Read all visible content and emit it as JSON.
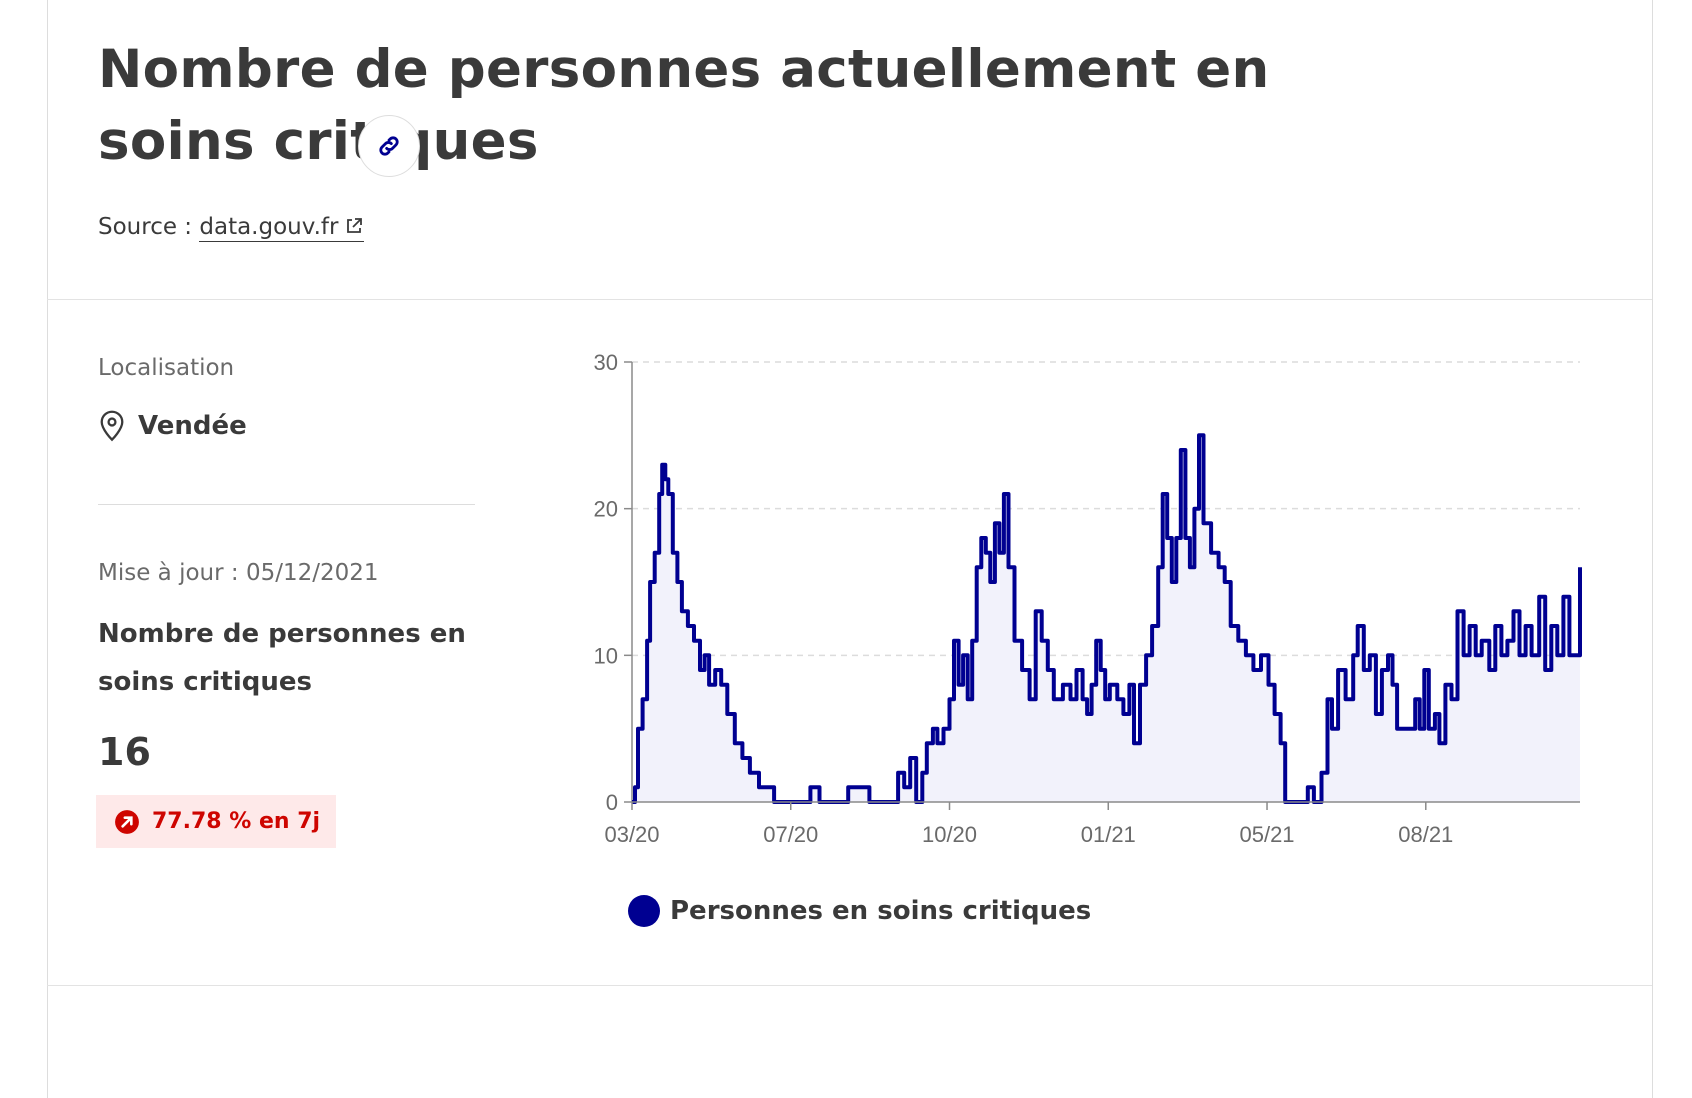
{
  "title": "Nombre de personnes actuellement en soins critiques",
  "source": {
    "prefix": "Source :",
    "link_label": "data.gouv.fr"
  },
  "localisation": {
    "label": "Localisation",
    "value": "Vendée"
  },
  "update": "Mise à jour : 05/12/2021",
  "kpi": {
    "label": "Nombre de personnes en soins critiques",
    "value": "16",
    "trend": "77.78 % en 7j"
  },
  "colors": {
    "series": "#000091",
    "area": "#f2f2fb",
    "trend_text": "#ce0500",
    "trend_bg": "#fee9e9"
  },
  "icons": {
    "link": "link-icon",
    "external": "external-link-icon",
    "location": "map-pin-icon",
    "trend": "arrow-up-right-circle-icon"
  },
  "legend_label": "Personnes en soins critiques",
  "chart_data": {
    "type": "area",
    "title": "",
    "xlabel": "",
    "ylabel": "",
    "x_tick_labels": [
      "03/20",
      "07/20",
      "10/20",
      "01/21",
      "05/21",
      "08/21"
    ],
    "x_tick_dates": [
      "2020-03-18",
      "2020-07-01",
      "2020-10-14",
      "2021-01-27",
      "2021-05-12",
      "2021-08-25"
    ],
    "y_ticks": [
      0,
      10,
      20,
      30
    ],
    "ylim": [
      0,
      30
    ],
    "xlim": [
      "2020-03-18",
      "2021-12-05"
    ],
    "grid": "horizontal dashed",
    "legend_position": "bottom",
    "series": [
      {
        "name": "Personnes en soins critiques",
        "color": "#000091",
        "points": [
          [
            "2020-03-18",
            0
          ],
          [
            "2020-03-20",
            1
          ],
          [
            "2020-03-22",
            5
          ],
          [
            "2020-03-25",
            7
          ],
          [
            "2020-03-28",
            11
          ],
          [
            "2020-03-30",
            15
          ],
          [
            "2020-04-02",
            17
          ],
          [
            "2020-04-05",
            21
          ],
          [
            "2020-04-07",
            23
          ],
          [
            "2020-04-09",
            22
          ],
          [
            "2020-04-11",
            21
          ],
          [
            "2020-04-14",
            17
          ],
          [
            "2020-04-17",
            15
          ],
          [
            "2020-04-20",
            13
          ],
          [
            "2020-04-24",
            12
          ],
          [
            "2020-04-28",
            11
          ],
          [
            "2020-05-02",
            9
          ],
          [
            "2020-05-05",
            10
          ],
          [
            "2020-05-08",
            8
          ],
          [
            "2020-05-12",
            9
          ],
          [
            "2020-05-16",
            8
          ],
          [
            "2020-05-20",
            6
          ],
          [
            "2020-05-25",
            4
          ],
          [
            "2020-05-30",
            3
          ],
          [
            "2020-06-04",
            2
          ],
          [
            "2020-06-10",
            1
          ],
          [
            "2020-06-16",
            1
          ],
          [
            "2020-06-20",
            0
          ],
          [
            "2020-07-10",
            0
          ],
          [
            "2020-07-14",
            1
          ],
          [
            "2020-07-20",
            0
          ],
          [
            "2020-08-04",
            0
          ],
          [
            "2020-08-08",
            1
          ],
          [
            "2020-08-18",
            1
          ],
          [
            "2020-08-22",
            0
          ],
          [
            "2020-09-06",
            0
          ],
          [
            "2020-09-10",
            2
          ],
          [
            "2020-09-14",
            1
          ],
          [
            "2020-09-18",
            3
          ],
          [
            "2020-09-22",
            0
          ],
          [
            "2020-09-26",
            2
          ],
          [
            "2020-09-29",
            4
          ],
          [
            "2020-10-03",
            5
          ],
          [
            "2020-10-06",
            4
          ],
          [
            "2020-10-10",
            5
          ],
          [
            "2020-10-14",
            7
          ],
          [
            "2020-10-17",
            11
          ],
          [
            "2020-10-20",
            8
          ],
          [
            "2020-10-23",
            10
          ],
          [
            "2020-10-26",
            7
          ],
          [
            "2020-10-29",
            11
          ],
          [
            "2020-11-01",
            16
          ],
          [
            "2020-11-04",
            18
          ],
          [
            "2020-11-07",
            17
          ],
          [
            "2020-11-10",
            15
          ],
          [
            "2020-11-13",
            19
          ],
          [
            "2020-11-16",
            17
          ],
          [
            "2020-11-19",
            21
          ],
          [
            "2020-11-22",
            16
          ],
          [
            "2020-11-26",
            11
          ],
          [
            "2020-12-01",
            9
          ],
          [
            "2020-12-06",
            7
          ],
          [
            "2020-12-10",
            13
          ],
          [
            "2020-12-14",
            11
          ],
          [
            "2020-12-18",
            9
          ],
          [
            "2020-12-22",
            7
          ],
          [
            "2020-12-28",
            8
          ],
          [
            "2021-01-02",
            7
          ],
          [
            "2021-01-06",
            9
          ],
          [
            "2021-01-10",
            7
          ],
          [
            "2021-01-13",
            6
          ],
          [
            "2021-01-16",
            8
          ],
          [
            "2021-01-19",
            11
          ],
          [
            "2021-01-22",
            9
          ],
          [
            "2021-01-25",
            7
          ],
          [
            "2021-01-28",
            8
          ],
          [
            "2021-02-02",
            7
          ],
          [
            "2021-02-06",
            6
          ],
          [
            "2021-02-10",
            8
          ],
          [
            "2021-02-13",
            4
          ],
          [
            "2021-02-17",
            8
          ],
          [
            "2021-02-21",
            10
          ],
          [
            "2021-02-25",
            12
          ],
          [
            "2021-03-01",
            16
          ],
          [
            "2021-03-04",
            21
          ],
          [
            "2021-03-07",
            18
          ],
          [
            "2021-03-10",
            15
          ],
          [
            "2021-03-13",
            18
          ],
          [
            "2021-03-16",
            24
          ],
          [
            "2021-03-19",
            18
          ],
          [
            "2021-03-22",
            16
          ],
          [
            "2021-03-25",
            20
          ],
          [
            "2021-03-28",
            25
          ],
          [
            "2021-03-31",
            19
          ],
          [
            "2021-04-05",
            17
          ],
          [
            "2021-04-10",
            16
          ],
          [
            "2021-04-14",
            15
          ],
          [
            "2021-04-18",
            12
          ],
          [
            "2021-04-23",
            11
          ],
          [
            "2021-04-28",
            10
          ],
          [
            "2021-05-03",
            9
          ],
          [
            "2021-05-08",
            10
          ],
          [
            "2021-05-13",
            8
          ],
          [
            "2021-05-17",
            6
          ],
          [
            "2021-05-21",
            4
          ],
          [
            "2021-05-24",
            0
          ],
          [
            "2021-06-05",
            0
          ],
          [
            "2021-06-08",
            1
          ],
          [
            "2021-06-12",
            0
          ],
          [
            "2021-06-17",
            2
          ],
          [
            "2021-06-21",
            7
          ],
          [
            "2021-06-24",
            5
          ],
          [
            "2021-06-28",
            9
          ],
          [
            "2021-07-03",
            7
          ],
          [
            "2021-07-08",
            10
          ],
          [
            "2021-07-11",
            12
          ],
          [
            "2021-07-15",
            9
          ],
          [
            "2021-07-19",
            10
          ],
          [
            "2021-07-23",
            6
          ],
          [
            "2021-07-27",
            9
          ],
          [
            "2021-07-31",
            10
          ],
          [
            "2021-08-03",
            8
          ],
          [
            "2021-08-06",
            5
          ],
          [
            "2021-08-14",
            5
          ],
          [
            "2021-08-18",
            7
          ],
          [
            "2021-08-21",
            5
          ],
          [
            "2021-08-24",
            9
          ],
          [
            "2021-08-27",
            5
          ],
          [
            "2021-08-31",
            6
          ],
          [
            "2021-09-03",
            4
          ],
          [
            "2021-09-07",
            8
          ],
          [
            "2021-09-11",
            7
          ],
          [
            "2021-09-15",
            13
          ],
          [
            "2021-09-19",
            10
          ],
          [
            "2021-09-23",
            12
          ],
          [
            "2021-09-27",
            10
          ],
          [
            "2021-10-01",
            11
          ],
          [
            "2021-10-06",
            9
          ],
          [
            "2021-10-10",
            12
          ],
          [
            "2021-10-14",
            10
          ],
          [
            "2021-10-18",
            11
          ],
          [
            "2021-10-22",
            13
          ],
          [
            "2021-10-26",
            10
          ],
          [
            "2021-10-30",
            12
          ],
          [
            "2021-11-03",
            10
          ],
          [
            "2021-11-08",
            14
          ],
          [
            "2021-11-12",
            9
          ],
          [
            "2021-11-16",
            12
          ],
          [
            "2021-11-20",
            10
          ],
          [
            "2021-11-24",
            14
          ],
          [
            "2021-11-28",
            10
          ],
          [
            "2021-12-05",
            16
          ]
        ]
      }
    ]
  }
}
